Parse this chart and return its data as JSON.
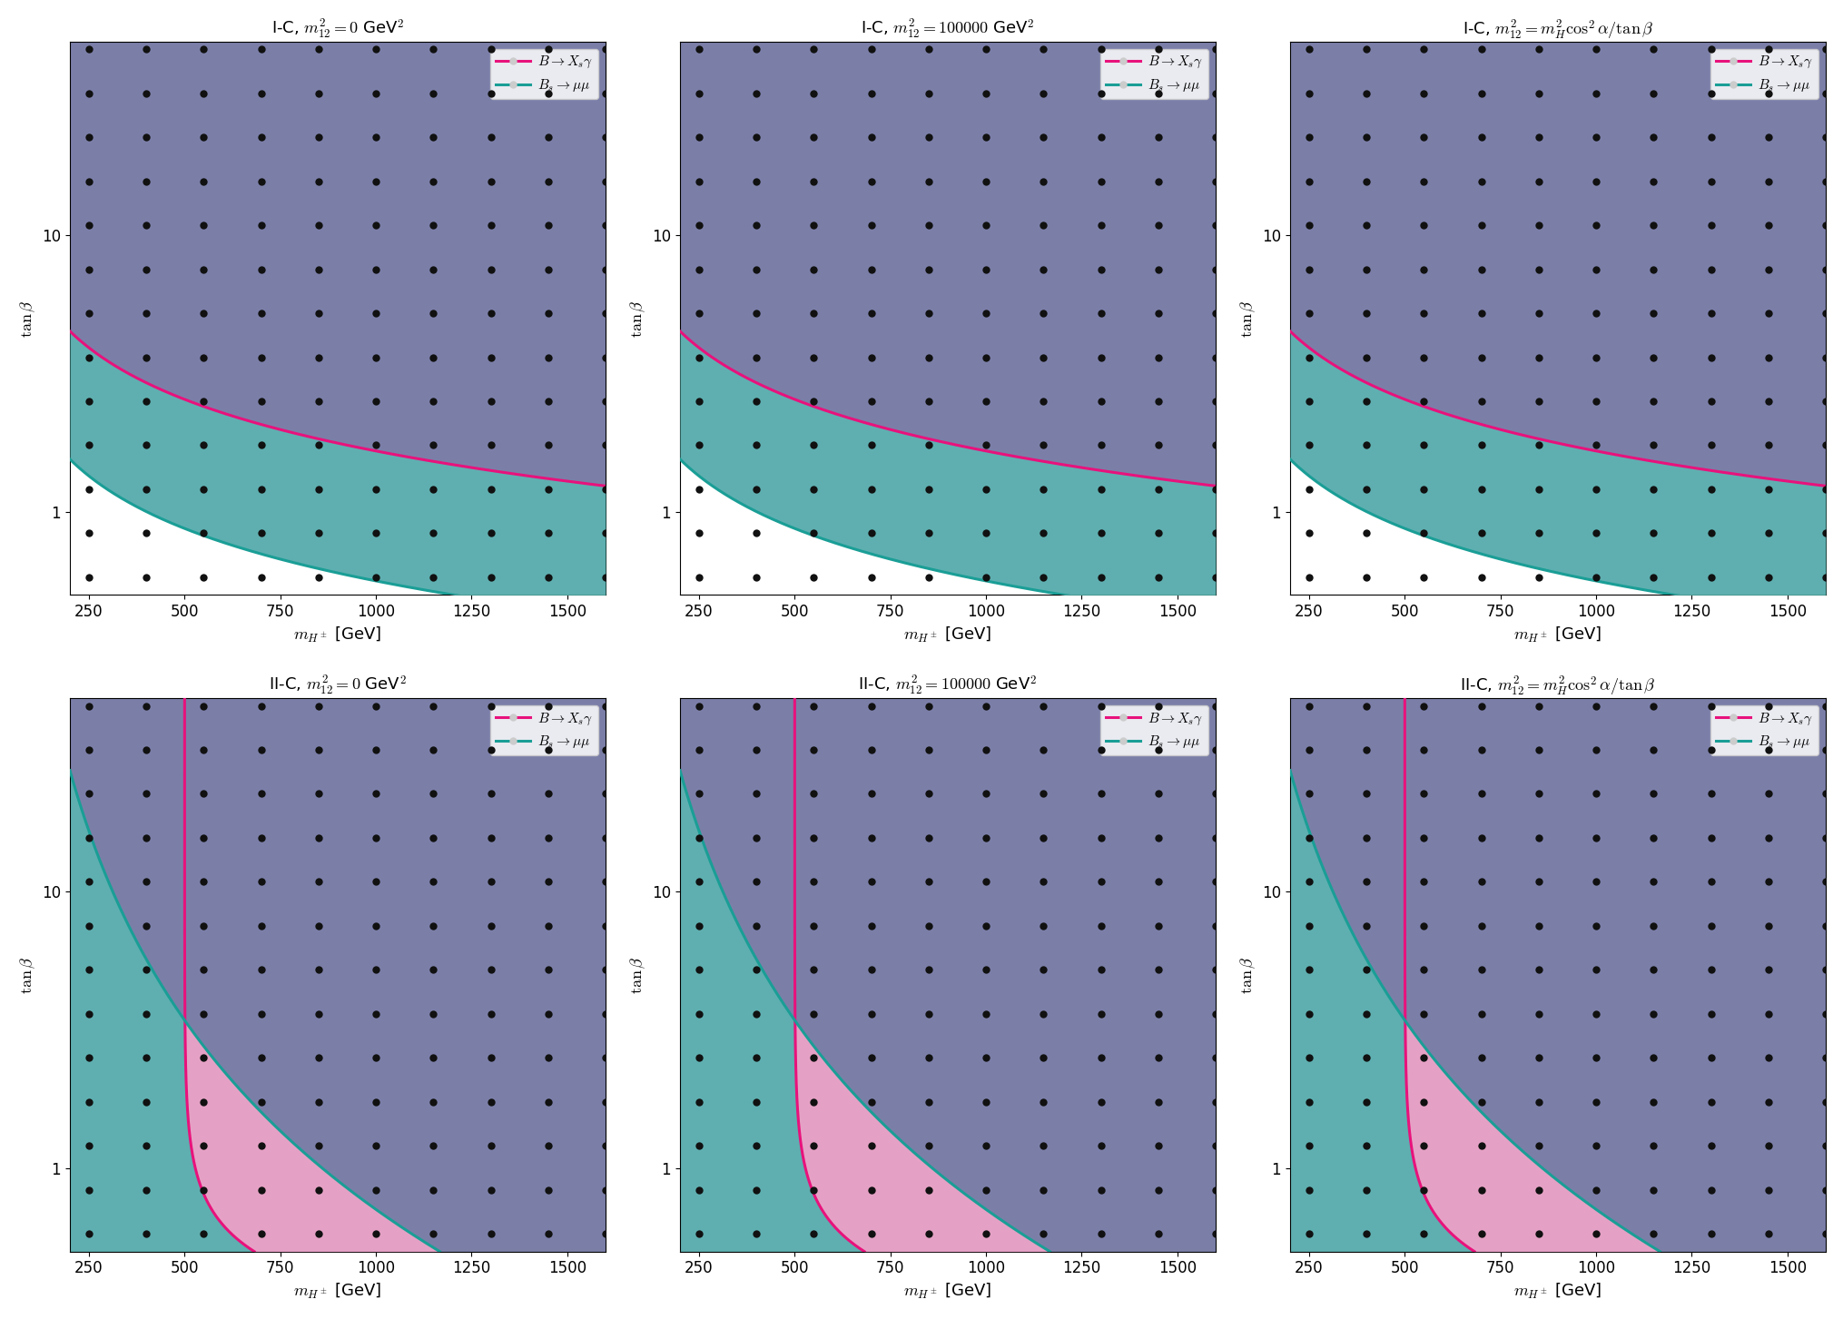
{
  "titles": [
    "I-C, $m_{12}^2 = 0$ GeV$^2$",
    "I-C, $m_{12}^2 = 100000$ GeV$^2$",
    "I-C, $m_{12}^2 = m_H^2 \\cos^2\\alpha/\\tan\\beta$",
    "II-C, $m_{12}^2 = 0$ GeV$^2$",
    "II-C, $m_{12}^2 = 100000$ GeV$^2$",
    "II-C, $m_{12}^2 = m_H^2 \\cos^2\\alpha/\\tan\\beta$"
  ],
  "xlabel": "$m_{H^\\pm}$ [GeV]",
  "ylabel": "$\\tan\\beta$",
  "xlim": [
    200,
    1600
  ],
  "ylim": [
    0.5,
    50
  ],
  "x_ticks": [
    250,
    500,
    750,
    1000,
    1250,
    1500
  ],
  "y_ticks": [
    1,
    10
  ],
  "bg_color": "#7b7fa8",
  "teal_color": "#1a9e96",
  "pink_color": "#e8127c",
  "teal_fill_color": "#5ab8b2",
  "pink_fill_color": "#f5a0c8",
  "dot_color": "#111111",
  "dot_size": 6,
  "line_width": 2.2,
  "IC_pink_n": 0.62,
  "IC_pink_y0": 4.5,
  "IC_pink_x0": 200,
  "IC_teal_n": 0.63,
  "IC_teal_y0": 1.55,
  "IC_teal_x0": 200,
  "IIC_teal_A": 860,
  "IIC_teal_n": 0.44,
  "IIC_pink_x0": 500,
  "IIC_pink_C": 28,
  "IIC_pink_m": 2.7
}
